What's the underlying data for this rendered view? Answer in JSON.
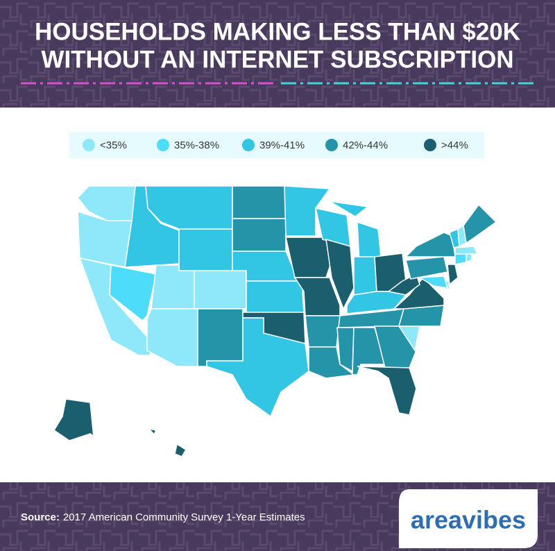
{
  "header": {
    "title_lines": [
      "HOUSEHOLDS MAKING LESS THAN $20K",
      "WITHOUT AN INTERNET SUBSCRIPTION"
    ]
  },
  "legend": [
    {
      "label": "<35%",
      "color": "#8fe8fa"
    },
    {
      "label": "35%-38%",
      "color": "#4ddcfa"
    },
    {
      "label": "39%-41%",
      "color": "#33c6e4"
    },
    {
      "label": "42%-44%",
      "color": "#2694a8"
    },
    {
      "label": ">44%",
      "color": "#1b5f6e"
    }
  ],
  "map": {
    "state_bins": [
      0,
      0,
      0,
      1,
      2,
      2,
      2,
      0,
      0,
      0,
      3,
      3,
      3,
      2,
      2,
      4,
      2,
      2,
      4,
      4,
      3,
      3,
      2,
      4,
      2,
      2,
      4,
      2,
      3,
      3,
      3,
      3,
      4,
      0,
      3,
      4,
      4,
      3,
      3,
      2,
      2,
      0,
      3,
      0,
      1,
      0,
      4,
      0,
      1,
      4,
      4,
      4
    ]
  },
  "footer": {
    "source_label": "Source:",
    "source_text": "2017 American Community Survey 1-Year Estimates",
    "logo": "areavibes"
  }
}
